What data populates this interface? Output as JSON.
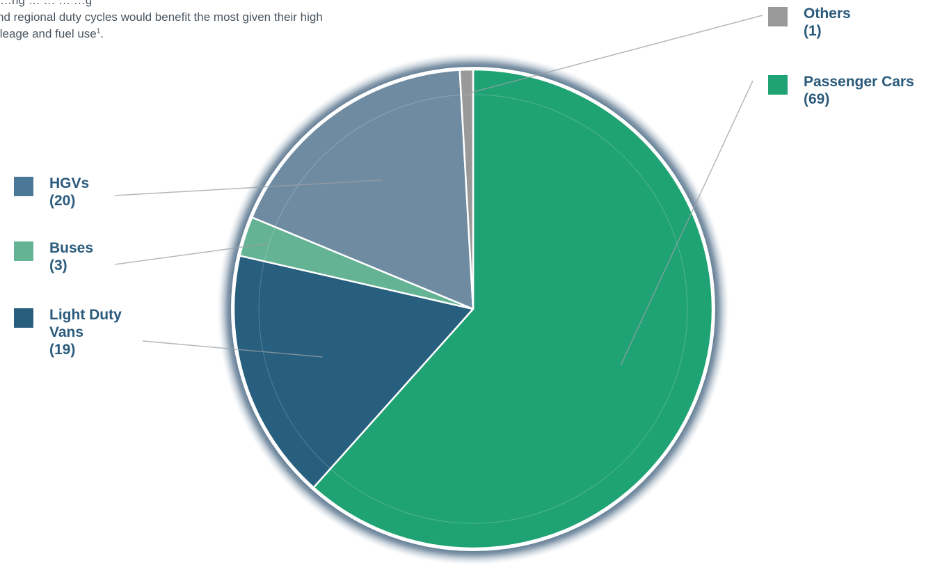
{
  "intro": {
    "line1": "…ng … … … …g",
    "line2": "nd regional duty cycles would benefit the most given their high",
    "line3": "ileage and fuel use",
    "footnote": "1",
    "period": "."
  },
  "chart_data": {
    "type": "pie",
    "slices": [
      {
        "label": "Passenger Cars",
        "count_label": "(69)",
        "value": 69,
        "color": "#1fa274"
      },
      {
        "label": "Light Duty Vans",
        "count_label": "(19)",
        "value": 19,
        "color": "#285e7e"
      },
      {
        "label": "Buses",
        "count_label": "(3)",
        "value": 3,
        "color": "#64b394"
      },
      {
        "label": "HGVs",
        "count_label": "(20)",
        "value": 20,
        "color": "#6f8ba2"
      },
      {
        "label": "Others",
        "count_label": "(1)",
        "value": 1,
        "color": "#999999"
      }
    ],
    "legend": {
      "others": {
        "label": "Others",
        "count": "(1)",
        "color": "#999999"
      },
      "cars": {
        "label": "Passenger Cars",
        "count": "(69)",
        "color": "#1fa274"
      },
      "hgvs": {
        "label": "HGVs",
        "count": "(20)",
        "color": "#4a7896"
      },
      "buses": {
        "label": "Buses",
        "count": "(3)",
        "color": "#64b394"
      },
      "vans": {
        "label": "Light Duty Vans",
        "count": "(19)",
        "color": "#285e7e"
      }
    }
  }
}
